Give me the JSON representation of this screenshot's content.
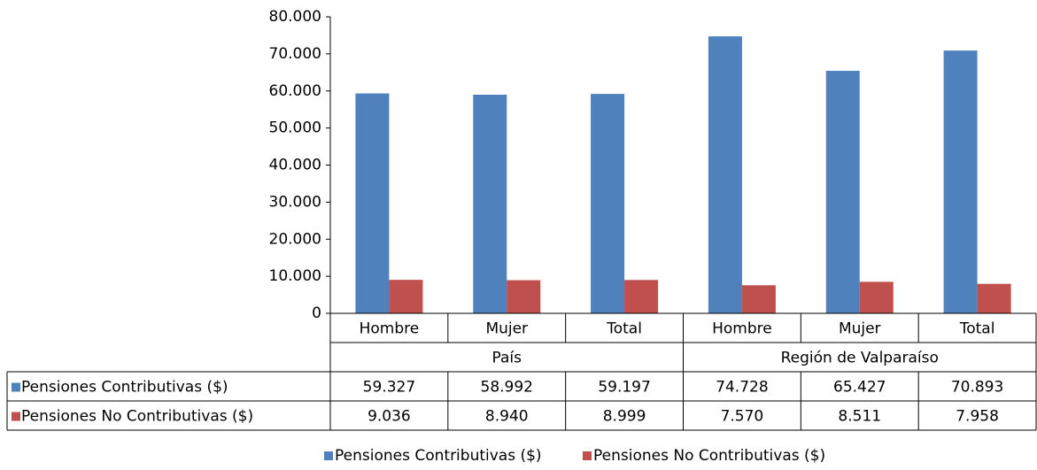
{
  "chart_data": {
    "type": "bar",
    "categories": [
      "Hombre",
      "Mujer",
      "Total",
      "Hombre",
      "Mujer",
      "Total"
    ],
    "group_labels": [
      "País",
      "Región de Valparaíso"
    ],
    "series": [
      {
        "name": "Pensiones Contributivas ($)",
        "color": "#4f81bd",
        "values": [
          59327,
          58992,
          59197,
          74728,
          65427,
          70893
        ],
        "value_labels": [
          "59.327",
          "58.992",
          "59.197",
          "74.728",
          "65.427",
          "70.893"
        ]
      },
      {
        "name": "Pensiones No Contributivas ($)",
        "color": "#c0504d",
        "values": [
          9036,
          8940,
          8999,
          7570,
          8511,
          7958
        ],
        "value_labels": [
          "9.036",
          "8.940",
          "8.999",
          "7.570",
          "8.511",
          "7.958"
        ]
      }
    ],
    "ylim": [
      0,
      80000
    ],
    "yticks": [
      0,
      {
        "value": 10000,
        "label": "10.000"
      },
      {
        "value": 20000,
        "label": "20.000"
      },
      {
        "value": 30000,
        "label": "30.000"
      },
      {
        "value": 40000,
        "label": "40.000"
      },
      {
        "value": 50000,
        "label": "50.000"
      },
      {
        "value": 60000,
        "label": "60.000"
      },
      {
        "value": 70000,
        "label": "70.000"
      },
      {
        "value": 80000,
        "label": "80.000"
      }
    ],
    "grid": false,
    "legend": "bottom"
  }
}
